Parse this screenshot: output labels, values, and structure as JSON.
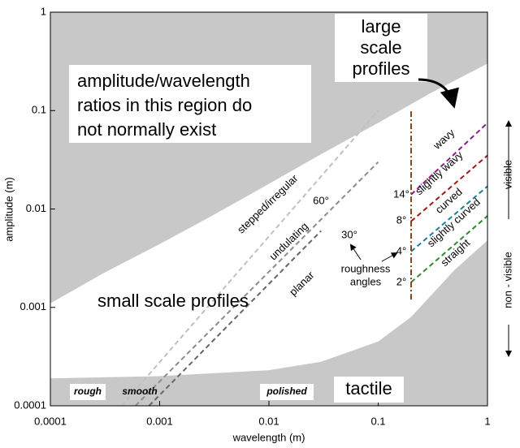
{
  "chart_data": {
    "type": "line",
    "x_label": "wavelength (m)",
    "y_label": "amplitude (m)",
    "log_x": true,
    "log_y": true,
    "xlim": [
      0.0001,
      1
    ],
    "ylim": [
      0.0001,
      1
    ],
    "xticks": [
      0.0001,
      0.001,
      0.01,
      0.1,
      1
    ],
    "yticks": [
      0.0001,
      0.001,
      0.01,
      0.1,
      1
    ],
    "region_color": "#c8c8c8",
    "upper_boundary": {
      "x": [
        0.0001,
        0.0003,
        0.001,
        0.003,
        0.01,
        0.03,
        0.1,
        0.3,
        1
      ],
      "values": [
        0.0011,
        0.0022,
        0.0044,
        0.0085,
        0.018,
        0.036,
        0.075,
        0.15,
        0.3
      ]
    },
    "lower_boundary": {
      "x": [
        0.0001,
        0.001,
        0.01,
        0.03,
        0.1,
        0.2,
        0.3,
        0.5,
        1
      ],
      "values": [
        0.00019,
        0.0002,
        0.00023,
        0.00028,
        0.00045,
        0.0008,
        0.0013,
        0.0024,
        0.0048
      ]
    },
    "series": [
      {
        "name": "stepped/irregular",
        "color": "#c0c0c0",
        "x": [
          0.00045,
          0.1
        ],
        "values": [
          0.0001,
          0.1
        ]
      },
      {
        "name": "undulating",
        "color": "#8c8c8c",
        "x": [
          0.0006,
          0.1
        ],
        "values": [
          0.0001,
          0.03
        ]
      },
      {
        "name": "planar",
        "color": "#666666",
        "x": [
          0.0008,
          0.03
        ],
        "values": [
          0.0001,
          0.006
        ]
      },
      {
        "color": "#8b1a8b",
        "x": [
          0.2,
          1
        ],
        "values": [
          0.014,
          0.075
        ]
      },
      {
        "color": "#a01818",
        "x": [
          0.2,
          1
        ],
        "values": [
          0.0075,
          0.035
        ]
      },
      {
        "color": "#1a7f9a",
        "x": [
          0.2,
          1
        ],
        "values": [
          0.0037,
          0.017
        ]
      },
      {
        "color": "#2e8b2e",
        "x": [
          0.2,
          1
        ],
        "values": [
          0.0018,
          0.0085
        ]
      },
      {
        "color": "#8b4513",
        "x": [
          0.2,
          0.2
        ],
        "values": [
          0.0012,
          0.1
        ],
        "dash": "dashdot"
      }
    ],
    "annotations": {
      "no_exist": [
        "amplitude/wavelength",
        "ratios in this region do",
        "not normally exist"
      ],
      "large_scale": [
        "large",
        "scale",
        "profiles"
      ],
      "small_scale": "small scale profiles",
      "tactile": "tactile",
      "rough": "rough",
      "smooth": "smooth",
      "polished": "polished",
      "angle_60": "60°",
      "angle_30": "30°",
      "roughness_angles": [
        "roughness",
        "angles"
      ],
      "angles": [
        "14°",
        "8°",
        "4°",
        "2°"
      ],
      "profiles": [
        "wavy",
        "slightly wavy",
        "curved",
        "slightly curved",
        "straight"
      ],
      "visible": "visible",
      "non_visible": "non - visible"
    }
  }
}
